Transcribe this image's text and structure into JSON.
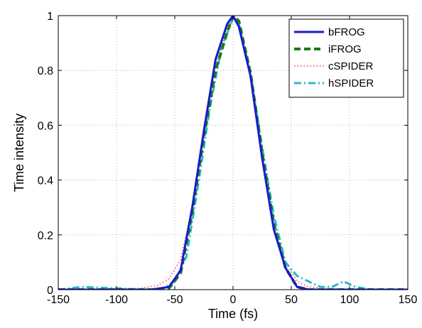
{
  "chart_data": {
    "type": "line",
    "title": "",
    "xlabel": "Time (fs)",
    "ylabel": "Time intensity",
    "xlim": [
      -150,
      150
    ],
    "ylim": [
      0,
      1
    ],
    "xticks": [
      -150,
      -100,
      -50,
      0,
      50,
      100,
      150
    ],
    "yticks": [
      0,
      0.2,
      0.4,
      0.6,
      0.8,
      1
    ],
    "xtick_labels": [
      "-150",
      "-100",
      "-50",
      "0",
      "50",
      "100",
      "150"
    ],
    "ytick_labels": [
      "0",
      "0.2",
      "0.4",
      "0.6",
      "0.8",
      "1"
    ],
    "grid": true,
    "legend_position": "top-right",
    "series": [
      {
        "name": "bFROG",
        "color": "#1a1acc",
        "style": "solid",
        "x": [
          -150,
          -100,
          -70,
          -55,
          -45,
          -35,
          -25,
          -15,
          -5,
          0,
          5,
          15,
          25,
          35,
          45,
          55,
          65,
          100,
          150
        ],
        "y": [
          0,
          0,
          0,
          0.01,
          0.07,
          0.3,
          0.58,
          0.84,
          0.97,
          1.0,
          0.96,
          0.78,
          0.48,
          0.22,
          0.08,
          0.01,
          0,
          0,
          0
        ]
      },
      {
        "name": "iFROG",
        "color": "#1a7a1a",
        "style": "dashed",
        "x": [
          -150,
          -100,
          -70,
          -55,
          -45,
          -35,
          -25,
          -15,
          -5,
          0,
          5,
          15,
          25,
          35,
          45,
          55,
          65,
          100,
          150
        ],
        "y": [
          0,
          0,
          0,
          0.005,
          0.06,
          0.28,
          0.56,
          0.8,
          0.94,
          1.0,
          0.98,
          0.79,
          0.5,
          0.24,
          0.08,
          0.01,
          0,
          0,
          0
        ]
      },
      {
        "name": "cSPIDER",
        "color": "#ff6666",
        "style": "dotted",
        "x": [
          -150,
          -100,
          -80,
          -65,
          -55,
          -45,
          -35,
          -25,
          -15,
          -5,
          0,
          5,
          15,
          25,
          35,
          45,
          55,
          65,
          80,
          100,
          150
        ],
        "y": [
          0,
          0,
          0.005,
          0.015,
          0.04,
          0.11,
          0.3,
          0.56,
          0.82,
          0.96,
          0.99,
          0.97,
          0.79,
          0.5,
          0.24,
          0.1,
          0.03,
          0.01,
          0.005,
          0,
          0
        ]
      },
      {
        "name": "hSPIDER",
        "color": "#22bbcc",
        "style": "dashdot",
        "x": [
          -150,
          -130,
          -100,
          -75,
          -60,
          -50,
          -40,
          -30,
          -20,
          -10,
          0,
          5,
          15,
          25,
          35,
          45,
          55,
          65,
          75,
          85,
          95,
          105,
          120,
          150
        ],
        "y": [
          0,
          0.01,
          0.005,
          0,
          0.005,
          0.03,
          0.12,
          0.38,
          0.66,
          0.88,
          0.99,
          0.97,
          0.79,
          0.52,
          0.27,
          0.1,
          0.05,
          0.03,
          0.01,
          0.01,
          0.03,
          0.01,
          0,
          0
        ]
      }
    ]
  }
}
